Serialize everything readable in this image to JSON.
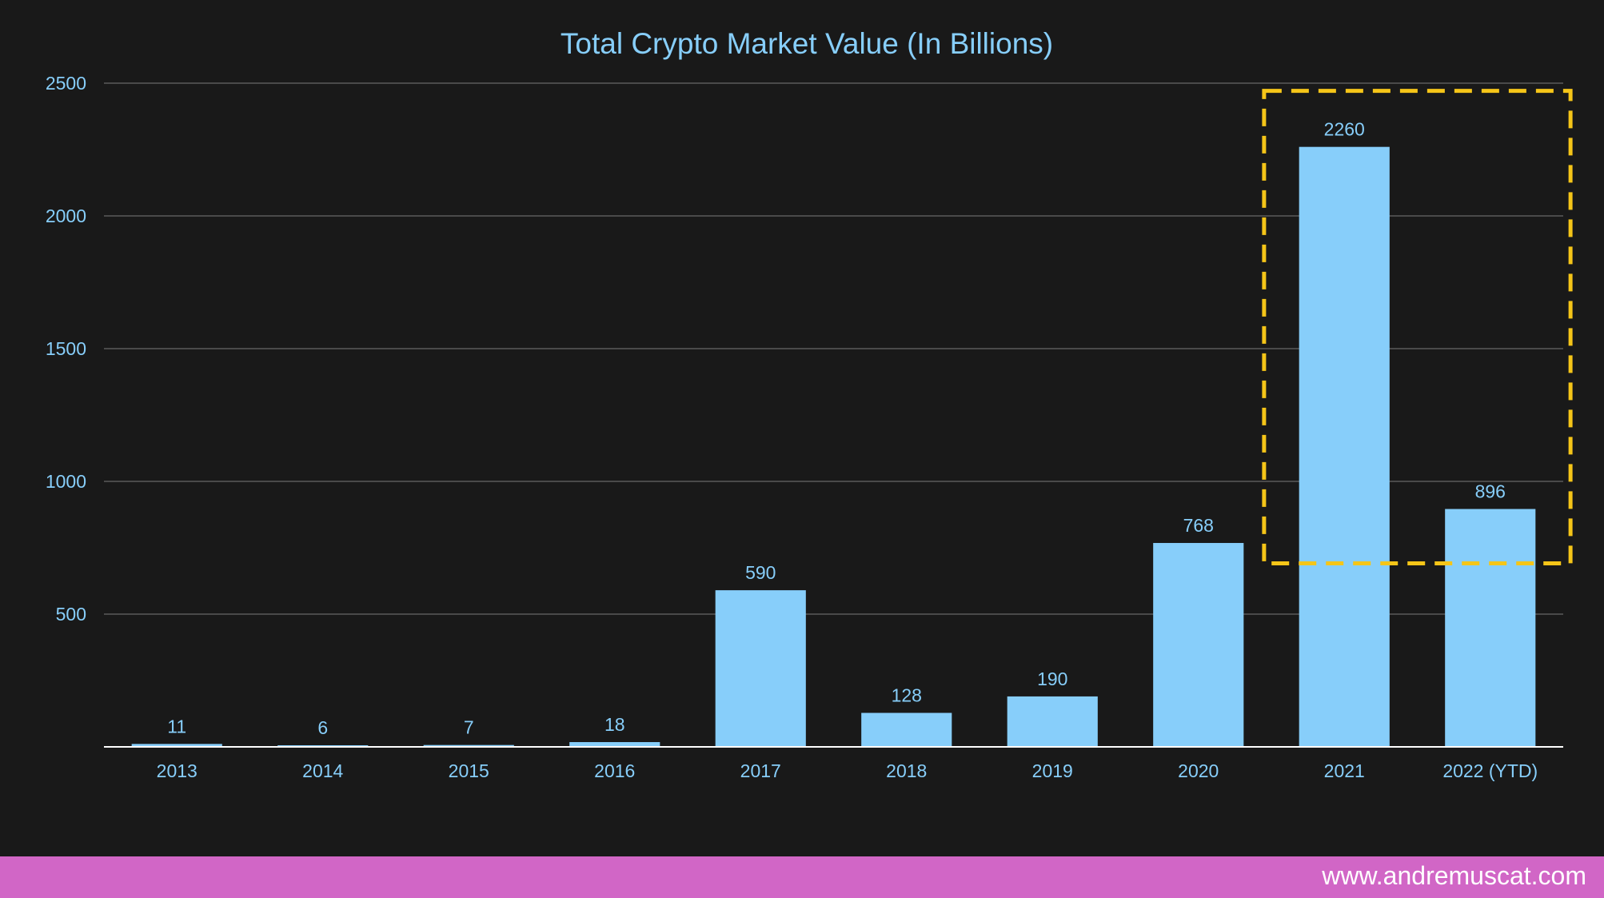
{
  "chart_data": {
    "type": "bar",
    "title": "Total Crypto Market Value (In Billions)",
    "xlabel": "",
    "ylabel": "",
    "categories": [
      "2013",
      "2014",
      "2015",
      "2016",
      "2017",
      "2018",
      "2019",
      "2020",
      "2021",
      "2022 (YTD)"
    ],
    "values": [
      11,
      6,
      7,
      18,
      590,
      128,
      190,
      768,
      2260,
      896
    ],
    "ylim": [
      0,
      2500
    ],
    "yticks": [
      500,
      1000,
      1500,
      2000,
      2500
    ],
    "grid": true,
    "data_labels": true,
    "highlight": {
      "categories": [
        "2021",
        "2022 (YTD)"
      ],
      "style": "dashed box"
    },
    "colors": {
      "bar": "#87cefa",
      "text": "#87cefa",
      "grid": "#5a5a5a",
      "axis": "#ffffff",
      "highlight": "#f5c518",
      "background": "#191919"
    }
  },
  "footer": {
    "url": "www.andremuscat.com",
    "background": "#d166c6"
  }
}
